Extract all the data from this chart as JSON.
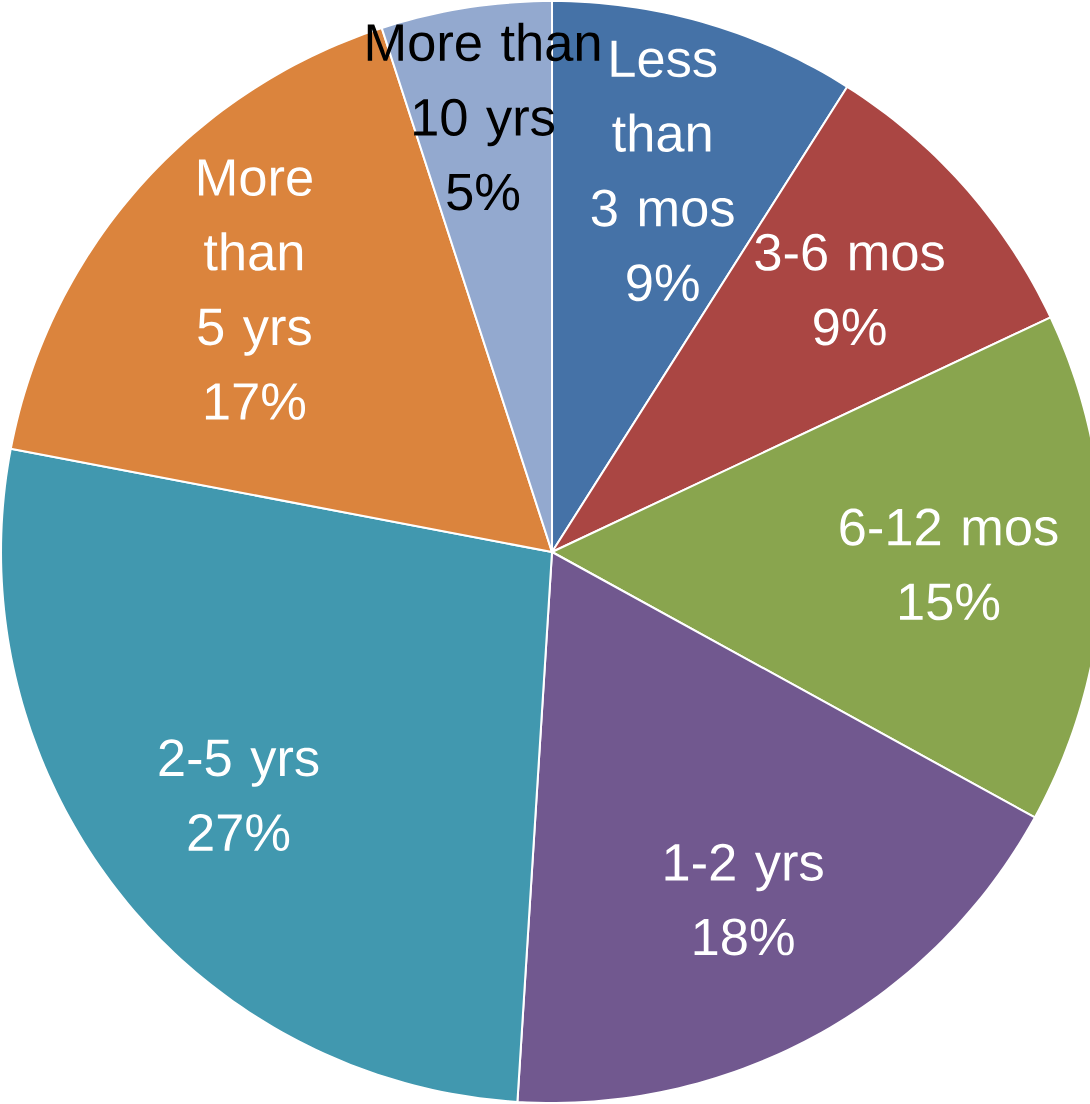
{
  "chart_data": {
    "type": "pie",
    "categories": [
      "Less than 3 mos",
      "3-6 mos",
      "6-12 mos",
      "1-2 yrs",
      "2-5 yrs",
      "More than 5 yrs",
      "More than 10 yrs"
    ],
    "values": [
      9,
      9,
      15,
      18,
      27,
      17,
      5
    ],
    "value_labels": [
      "9%",
      "9%",
      "15%",
      "18%",
      "27%",
      "17%",
      "5%"
    ],
    "colors": [
      "#4572a7",
      "#aa4643",
      "#89a54e",
      "#71588f",
      "#4198af",
      "#db843d",
      "#93a9cf"
    ]
  }
}
